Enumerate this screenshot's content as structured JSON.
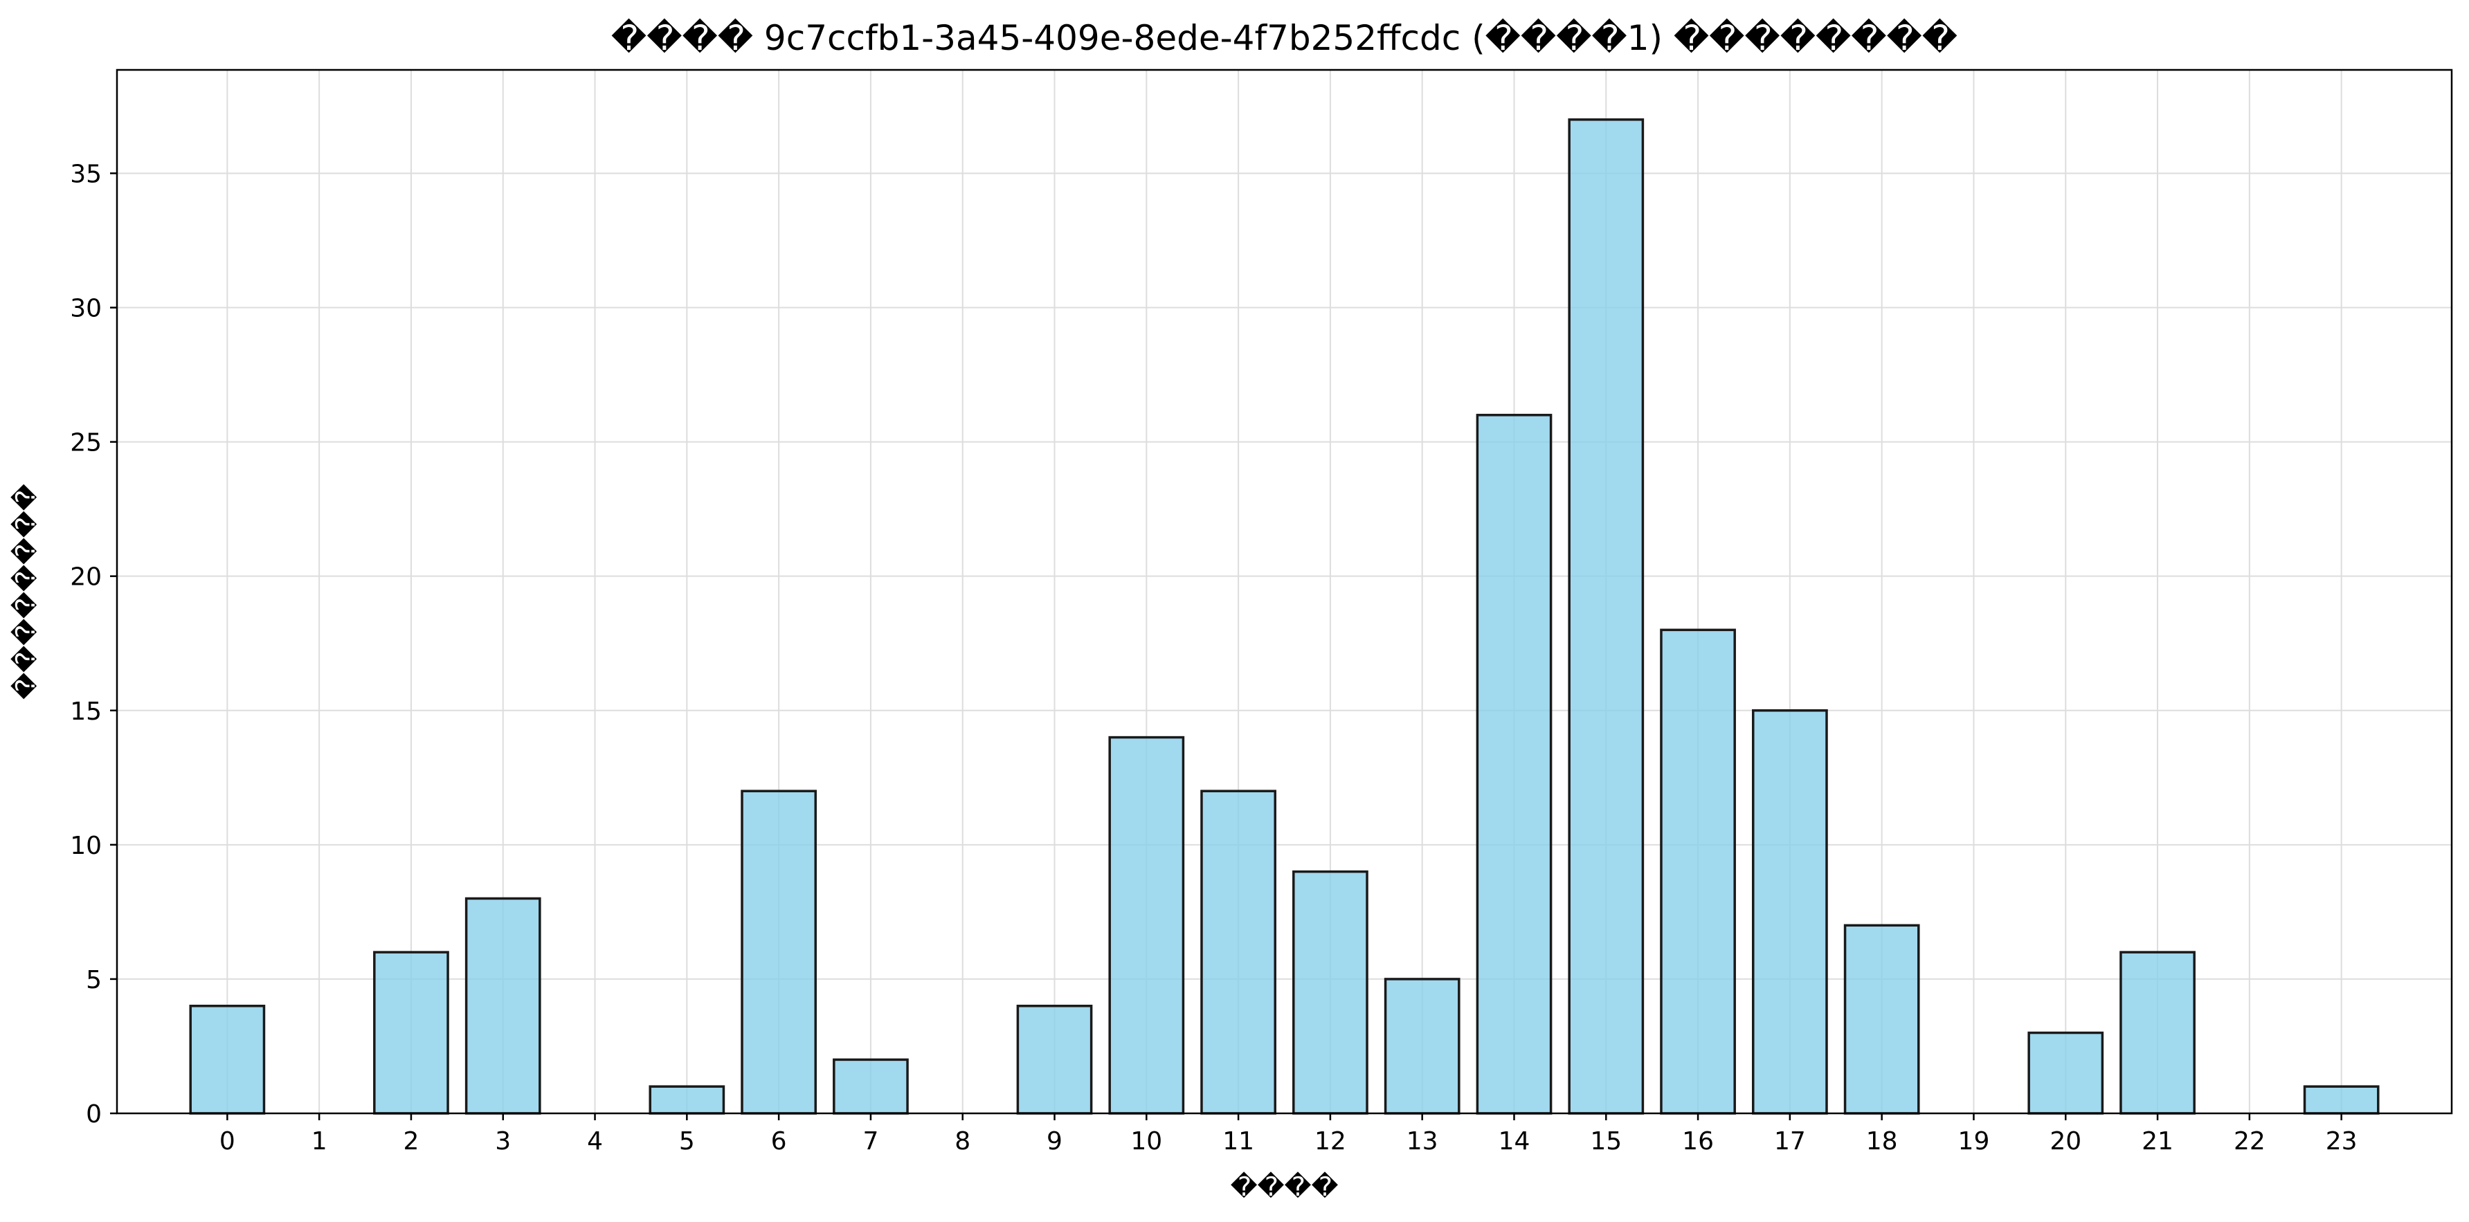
{
  "chart_data": {
    "type": "bar",
    "title": "���� 9c7ccfb1-3a45-409e-8ede-4f7b252ffcdc (����1) ��������",
    "xlabel": "����",
    "ylabel": "��������",
    "categories": [
      "0",
      "1",
      "2",
      "3",
      "4",
      "5",
      "6",
      "7",
      "8",
      "9",
      "10",
      "11",
      "12",
      "13",
      "14",
      "15",
      "16",
      "17",
      "18",
      "19",
      "20",
      "21",
      "22",
      "23"
    ],
    "values": [
      4,
      0,
      6,
      8,
      0,
      1,
      12,
      2,
      0,
      4,
      14,
      12,
      9,
      5,
      26,
      37,
      18,
      15,
      7,
      0,
      3,
      6,
      0,
      1
    ],
    "ylim": [
      0,
      38.85
    ],
    "yticks": [
      0,
      5,
      10,
      15,
      20,
      25,
      30,
      35
    ],
    "grid": true,
    "colors": {
      "bar_fill": "#87CEEB",
      "bar_edge": "#1a1a1a",
      "grid": "#dddddd"
    }
  }
}
